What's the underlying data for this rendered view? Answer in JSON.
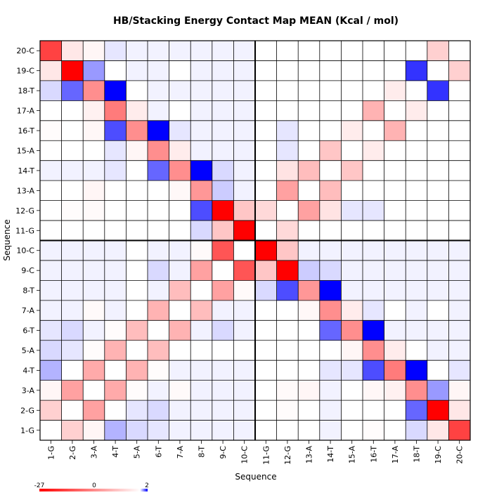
{
  "chart_data": {
    "type": "heatmap",
    "title": "HB/Stacking Energy Contact Map MEAN (Kcal / mol)",
    "xlabel": "Sequence",
    "ylabel": "Sequence",
    "labels": [
      "1-G",
      "2-G",
      "3-A",
      "4-T",
      "5-A",
      "6-T",
      "7-A",
      "8-T",
      "9-C",
      "10-C",
      "11-G",
      "12-G",
      "13-A",
      "14-T",
      "15-A",
      "16-T",
      "17-A",
      "18-T",
      "19-C",
      "20-C"
    ],
    "y_order": "bottom-to-top",
    "color_scale": {
      "min": -27,
      "mid": 0,
      "max": 2,
      "min_color": "#ff0000",
      "mid_color": "#ffffff",
      "max_color": "#0000ff",
      "tick_labels": [
        "-27",
        "0",
        "2"
      ]
    },
    "grid": true,
    "divider_after_index": 10,
    "matrix": [
      [
        0.0,
        -5.0,
        -1.0,
        0.6,
        0.3,
        0.2,
        0.1,
        0.1,
        0.1,
        0.1,
        0.0,
        0.0,
        0.0,
        0.1,
        0.0,
        -0.3,
        0.0,
        0.3,
        -2.5,
        -20.0
      ],
      [
        -5.0,
        0.0,
        -10.0,
        0.0,
        0.2,
        0.3,
        0.1,
        0.1,
        0.1,
        0.1,
        0.0,
        -0.3,
        0.0,
        0.1,
        0.0,
        0.0,
        0.0,
        1.2,
        -27.0,
        -2.5
      ],
      [
        -1.0,
        -10.0,
        0.0,
        -9.0,
        -0.3,
        0.1,
        -0.5,
        0.1,
        0.1,
        0.1,
        0.0,
        -0.5,
        -1.0,
        0.1,
        0.0,
        -0.8,
        -1.5,
        -12.0,
        0.8,
        -1.0
      ],
      [
        0.6,
        0.0,
        -9.0,
        0.0,
        -8.0,
        -0.3,
        0.1,
        0.1,
        0.1,
        0.1,
        0.0,
        0.0,
        0.0,
        0.2,
        0.2,
        1.4,
        -14.0,
        2.0,
        0.0,
        0.2
      ],
      [
        0.3,
        0.2,
        -0.3,
        -8.0,
        0.0,
        -7.0,
        0.0,
        0.0,
        0.0,
        0.0,
        0.0,
        0.0,
        0.0,
        0.0,
        -1.0,
        -12.0,
        -2.0,
        0.0,
        0.1,
        0.1
      ],
      [
        0.2,
        0.3,
        0.1,
        -0.3,
        -7.0,
        0.0,
        -8.0,
        0.1,
        0.3,
        0.1,
        0.0,
        0.0,
        0.0,
        1.2,
        -12.0,
        2.0,
        0.1,
        0.1,
        0.1,
        0.1
      ],
      [
        0.1,
        0.1,
        -0.5,
        0.1,
        0.0,
        -8.0,
        0.0,
        -7.0,
        0.1,
        0.1,
        0.0,
        0.0,
        -0.7,
        -12.0,
        -2.0,
        0.2,
        0.0,
        0.1,
        0.0,
        0.1
      ],
      [
        0.1,
        0.1,
        0.1,
        0.1,
        0.0,
        0.1,
        -7.0,
        0.0,
        -10.0,
        -0.5,
        0.3,
        1.4,
        -11.0,
        2.0,
        0.1,
        0.1,
        0.1,
        0.1,
        0.1,
        0.1
      ],
      [
        0.1,
        0.1,
        0.1,
        0.1,
        0.0,
        0.3,
        0.1,
        -10.0,
        0.0,
        -18.0,
        -6.0,
        -27.0,
        0.4,
        0.3,
        0.1,
        0.1,
        0.1,
        0.1,
        0.1,
        0.1
      ],
      [
        0.1,
        0.1,
        0.1,
        0.1,
        0.0,
        0.1,
        0.1,
        -0.5,
        -18.0,
        0.0,
        -27.0,
        -6.0,
        0.1,
        0.1,
        0.1,
        0.1,
        0.1,
        0.1,
        0.1,
        0.1
      ],
      [
        0.0,
        0.0,
        0.0,
        0.0,
        0.0,
        0.0,
        0.0,
        0.3,
        -6.0,
        -27.0,
        0.0,
        -4.0,
        0.0,
        0.0,
        0.0,
        0.0,
        0.0,
        0.0,
        0.0,
        0.0
      ],
      [
        0.0,
        -0.3,
        -0.5,
        0.0,
        0.0,
        0.0,
        0.0,
        1.4,
        -27.0,
        -6.0,
        -4.0,
        0.0,
        -10.0,
        -3.0,
        0.2,
        0.2,
        0.0,
        0.0,
        0.0,
        0.0
      ],
      [
        0.0,
        0.0,
        -1.0,
        0.0,
        0.0,
        0.0,
        -0.7,
        -11.0,
        0.4,
        0.1,
        0.0,
        -10.0,
        0.0,
        -7.0,
        0.0,
        0.0,
        0.0,
        0.0,
        0.0,
        0.0
      ],
      [
        0.1,
        0.1,
        0.1,
        0.2,
        0.0,
        1.2,
        -12.0,
        2.0,
        0.3,
        0.1,
        0.0,
        -3.0,
        -7.0,
        0.0,
        -6.0,
        0.0,
        0.0,
        0.0,
        0.0,
        0.0
      ],
      [
        0.0,
        0.0,
        0.0,
        0.2,
        -1.0,
        -12.0,
        -2.0,
        0.1,
        0.1,
        0.1,
        0.0,
        0.2,
        0.0,
        -6.0,
        0.0,
        -2.0,
        0.0,
        0.0,
        0.0,
        0.0
      ],
      [
        -0.3,
        0.0,
        -0.8,
        1.4,
        -12.0,
        2.0,
        0.2,
        0.1,
        0.1,
        0.1,
        0.0,
        0.2,
        0.0,
        0.0,
        -2.0,
        0.0,
        -8.0,
        0.0,
        0.0,
        0.0
      ],
      [
        0.0,
        0.0,
        -1.5,
        -14.0,
        -2.0,
        0.1,
        0.0,
        0.1,
        0.1,
        0.1,
        0.0,
        0.0,
        0.0,
        0.0,
        0.0,
        -8.0,
        0.0,
        -2.0,
        0.0,
        0.0
      ],
      [
        0.3,
        1.2,
        -12.0,
        2.0,
        0.0,
        0.1,
        0.1,
        0.1,
        0.1,
        0.1,
        0.0,
        0.0,
        0.0,
        0.0,
        0.0,
        0.0,
        -2.0,
        0.0,
        1.6,
        0.0
      ],
      [
        -2.5,
        -27.0,
        0.8,
        0.0,
        0.1,
        0.1,
        0.0,
        0.1,
        0.1,
        0.1,
        0.0,
        0.0,
        0.0,
        0.0,
        0.0,
        0.0,
        0.0,
        1.6,
        0.0,
        -5.0
      ],
      [
        -20.0,
        -2.5,
        -1.0,
        0.2,
        0.1,
        0.1,
        0.1,
        0.1,
        0.1,
        0.1,
        0.0,
        0.0,
        0.0,
        0.0,
        0.0,
        0.0,
        0.0,
        0.0,
        -5.0,
        0.0
      ]
    ]
  }
}
